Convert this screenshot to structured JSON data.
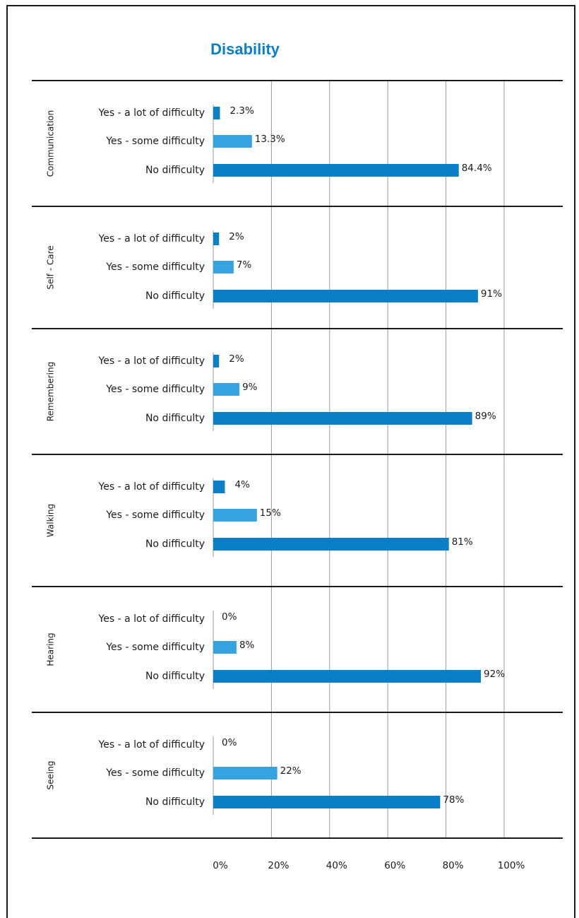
{
  "chart_data": {
    "type": "bar",
    "orientation": "horizontal",
    "title": "Disability",
    "categories": [
      "Yes - a lot of difficulty",
      "Yes - some difficulty",
      "No difficulty"
    ],
    "groups": [
      {
        "name": "Communication",
        "values": [
          2.3,
          13.3,
          84.4
        ],
        "labels": [
          "2.3%",
          "13.3%",
          "84.4%"
        ]
      },
      {
        "name": "Self - Care",
        "values": [
          2,
          7,
          91
        ],
        "labels": [
          "2%",
          "7%",
          "91%"
        ]
      },
      {
        "name": "Remembering",
        "values": [
          2,
          9,
          89
        ],
        "labels": [
          "2%",
          "9%",
          "89%"
        ]
      },
      {
        "name": "Walking",
        "values": [
          4,
          15,
          81
        ],
        "labels": [
          "4%",
          "15%",
          "81%"
        ]
      },
      {
        "name": "Hearing",
        "values": [
          0,
          8,
          92
        ],
        "labels": [
          "0%",
          "8%",
          "92%"
        ]
      },
      {
        "name": "Seeing",
        "values": [
          0,
          22,
          78
        ],
        "labels": [
          "0%",
          "22%",
          "78%"
        ]
      }
    ],
    "x_ticks": [
      "0%",
      "20%",
      "40%",
      "60%",
      "80%",
      "100%"
    ],
    "xlim": [
      0,
      100
    ],
    "grid": true,
    "colors": {
      "Yes - a lot of difficulty": "#0a7fc8",
      "Yes - some difficulty": "#36a3e0",
      "No difficulty": "#0a7fc8",
      "title": "#0a7fc8"
    }
  }
}
